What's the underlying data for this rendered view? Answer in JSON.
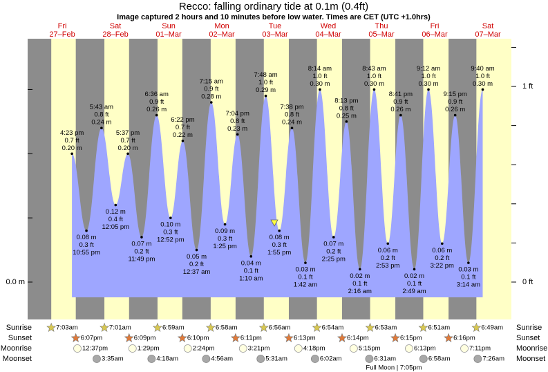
{
  "chart_data": {
    "type": "area",
    "title": "Recco: falling  ordinary tide at 0.1m (0.4ft)",
    "subtitle": "Image captured 2 hours and 10 minutes before low water. Times are CET (UTC +1.0hrs)",
    "weekdays": [
      "Fri",
      "Sat",
      "Sun",
      "Mon",
      "Tue",
      "Wed",
      "Thu",
      "Fri",
      "Sat"
    ],
    "dates": [
      "27–Feb",
      "28–Feb",
      "01–Mar",
      "02–Mar",
      "03–Mar",
      "04–Mar",
      "05–Mar",
      "06–Mar",
      "07–Mar"
    ],
    "x": [
      16.383,
      22.917,
      29.717,
      36.083,
      41.617,
      47.817,
      54.6,
      60.867,
      66.367,
      72.617,
      79.25,
      85.417,
      91.067,
      97.167,
      103.8,
      109.917,
      115.633,
      121.7,
      128.233,
      134.417,
      140.217,
      146.267,
      152.717,
      158.883,
      164.683,
      170.817,
      177.2,
      183.367,
      189.25,
      195.233,
      201.667
    ],
    "values": [
      0.2,
      0.08,
      0.24,
      0.12,
      0.2,
      0.07,
      0.26,
      0.1,
      0.22,
      0.05,
      0.28,
      0.09,
      0.23,
      0.04,
      0.29,
      0.08,
      0.24,
      0.03,
      0.3,
      0.07,
      0.25,
      0.02,
      0.3,
      0.06,
      0.26,
      0.02,
      0.3,
      0.06,
      0.26,
      0.03,
      0.3
    ],
    "value_labels": [
      "0.20 m",
      "0.08 m",
      "0.24 m",
      "0.12 m",
      "0.20 m",
      "0.07 m",
      "0.26 m",
      "0.10 m",
      "0.22 m",
      "0.05 m",
      "0.28 m",
      "0.09 m",
      "0.23 m",
      "0.04 m",
      "0.29 m",
      "0.08 m",
      "0.24 m",
      "0.03 m",
      "0.30 m",
      "0.07 m",
      "0.25 m",
      "0.02 m",
      "0.30 m",
      "0.06 m",
      "0.26 m",
      "0.02 m",
      "0.30 m",
      "0.06 m",
      "0.26 m",
      "0.03 m",
      "0.30 m"
    ],
    "feet_labels": [
      "0.7 ft",
      "0.3 ft",
      "0.8 ft",
      "0.4 ft",
      "0.7 ft",
      "0.2 ft",
      "0.9 ft",
      "0.3 ft",
      "0.7 ft",
      "0.2 ft",
      "0.9 ft",
      "0.3 ft",
      "0.8 ft",
      "0.1 ft",
      "1.0 ft",
      "0.3 ft",
      "0.8 ft",
      "0.1 ft",
      "1.0 ft",
      "0.2 ft",
      "0.8 ft",
      "0.1 ft",
      "1.0 ft",
      "0.2 ft",
      "0.9 ft",
      "0.1 ft",
      "1.0 ft",
      "0.2 ft",
      "0.9 ft",
      "0.1 ft",
      "1.0 ft"
    ],
    "time_labels": [
      "4:23 pm",
      "10:55 pm",
      "5:43 am",
      "12:05 pm",
      "5:37 pm",
      "11:49 pm",
      "6:36 am",
      "12:52 pm",
      "6:22 pm",
      "12:37 am",
      "7:15 am",
      "1:25 pm",
      "7:04 pm",
      "1:10 am",
      "7:48 am",
      "1:55 pm",
      "7:38 pm",
      "1:42 am",
      "8:14 am",
      "2:25 pm",
      "8:13 pm",
      "2:16 am",
      "8:43 am",
      "2:53 pm",
      "8:41 pm",
      "2:49 am",
      "9:12 am",
      "3:22 pm",
      "9:15 pm",
      "3:14 am",
      "9:40 am"
    ],
    "xlim": [
      -3.6,
      214.6
    ],
    "ylim": [
      -0.0582,
      0.3791
    ],
    "yticks": [
      {
        "value": 0,
        "label": "0.0 m"
      }
    ],
    "y_minor_ticks": [
      0.1,
      0.2,
      0.3
    ],
    "y2lim": [
      -0.191,
      1.244
    ],
    "y2ticks": [
      {
        "value": 0,
        "label": "0 ft"
      },
      {
        "value": 1,
        "label": "1 ft"
      }
    ],
    "y2_minor_ticks": [
      0.2,
      0.4,
      0.6,
      0.8,
      1.2
    ],
    "color": "#9ea6ff",
    "day_color": "#ffffc6",
    "night_color": "#8c8c8c",
    "almanac": {
      "row_labels": [
        "Sunrise",
        "Sunset",
        "Moonrise",
        "Moonset"
      ],
      "sunrise": [
        "7:03am",
        "7:01am",
        "6:59am",
        "6:58am",
        "6:56am",
        "6:54am",
        "6:53am",
        "6:51am",
        "6:49am"
      ],
      "sunset": [
        "6:07pm",
        "6:09pm",
        "6:10pm",
        "6:11pm",
        "6:13pm",
        "6:14pm",
        "6:15pm",
        "6:16pm"
      ],
      "moonrise": [
        "12:37pm",
        "1:29pm",
        "2:24pm",
        "3:21pm",
        "4:18pm",
        "5:15pm",
        "6:13pm",
        "7:11pm"
      ],
      "moonset": [
        "3:35am",
        "4:18am",
        "4:56am",
        "5:31am",
        "6:02am",
        "6:31am",
        "6:58am",
        "7:26am"
      ],
      "moon_phase": "Full Moon | 7:05pm"
    }
  }
}
